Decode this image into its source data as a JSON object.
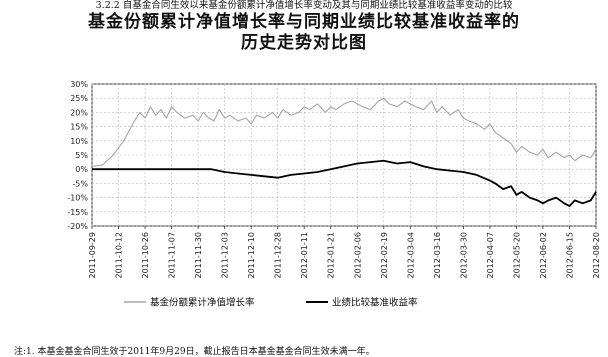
{
  "section_title": "3.2.2 自基金合同生效以来基金份额累计净值增长率变动及其与同期业绩比较基准收益率变动的比较",
  "chart_title_line1": "基金份额累计净值增长率与同期业绩比较基准收益率的",
  "chart_title_line2": "历史走势对比图",
  "footnote": "注:1. 本基金基金合同生效于2011年9月29日，截止报告日本基金基金合同生效未满一年。",
  "colors": {
    "nav": "#a6a6a6",
    "benchmark": "#000000",
    "grid": "#b8b8b8",
    "axis": "#333333"
  },
  "chart_data": {
    "type": "line",
    "ylim": [
      -20,
      30
    ],
    "yticks": [
      30,
      25,
      20,
      15,
      10,
      5,
      0,
      -5,
      -10,
      -15,
      -20
    ],
    "ytick_labels": [
      "30%",
      "25%",
      "20%",
      "15%",
      "10%",
      "5%",
      "0%",
      "-5%",
      "-10%",
      "-15%",
      "-20%"
    ],
    "xticks": [
      {
        "pos": 0,
        "label": "2011-09-29"
      },
      {
        "pos": 10,
        "label": "2011-10-12"
      },
      {
        "pos": 20,
        "label": "2011-10-26"
      },
      {
        "pos": 30,
        "label": "2011-11-07"
      },
      {
        "pos": 40,
        "label": "2011-11-30"
      },
      {
        "pos": 50,
        "label": "2011-12-03"
      },
      {
        "pos": 60,
        "label": "2011-12-10"
      },
      {
        "pos": 70,
        "label": "2011-12-28"
      },
      {
        "pos": 80,
        "label": "2012-01-11"
      },
      {
        "pos": 90,
        "label": "2012-01-21"
      },
      {
        "pos": 100,
        "label": "2012-02-06"
      },
      {
        "pos": 110,
        "label": "2012-02-19"
      },
      {
        "pos": 120,
        "label": "2012-03-04"
      },
      {
        "pos": 130,
        "label": "2012-03-16"
      },
      {
        "pos": 140,
        "label": "2012-03-30"
      },
      {
        "pos": 150,
        "label": "2012-04-07"
      },
      {
        "pos": 160,
        "label": "2012-05-20"
      },
      {
        "pos": 170,
        "label": "2012-06-02"
      },
      {
        "pos": 180,
        "label": "2012-06-15"
      },
      {
        "pos": 190,
        "label": "2012-08-20"
      }
    ],
    "xlim": [
      0,
      190
    ],
    "series": [
      {
        "name": "基金份额累计净值增长率",
        "color": "#a6a6a6",
        "x": [
          0,
          4,
          8,
          12,
          16,
          18,
          20,
          22,
          24,
          26,
          28,
          30,
          32,
          35,
          38,
          40,
          42,
          44,
          46,
          48,
          50,
          52,
          55,
          58,
          60,
          62,
          65,
          68,
          70,
          72,
          75,
          78,
          80,
          82,
          85,
          88,
          90,
          92,
          95,
          98,
          100,
          102,
          105,
          108,
          110,
          112,
          115,
          118,
          120,
          122,
          125,
          128,
          130,
          132,
          135,
          138,
          140,
          142,
          145,
          148,
          150,
          152,
          155,
          158,
          160,
          162,
          165,
          168,
          170,
          172,
          175,
          178,
          180,
          182,
          185,
          188,
          190
        ],
        "y": [
          1,
          1.5,
          5,
          10,
          17,
          20,
          18,
          22,
          19,
          21,
          18,
          22,
          20,
          18,
          19,
          17,
          20,
          18,
          17,
          21,
          18,
          19,
          17,
          18,
          16,
          19,
          18,
          20,
          18,
          21,
          19,
          20,
          22,
          21,
          23,
          20,
          22,
          21,
          23,
          24,
          23,
          22,
          21,
          24,
          25,
          23,
          22,
          24,
          23,
          22,
          21,
          24,
          20,
          22,
          19,
          21,
          18,
          17,
          16,
          14,
          16,
          13,
          11,
          9,
          6,
          8,
          6,
          5,
          7,
          4,
          6,
          4,
          5,
          3,
          5,
          4,
          7
        ]
      },
      {
        "name": "业绩比较基准收益率",
        "color": "#000000",
        "x": [
          0,
          5,
          10,
          15,
          20,
          25,
          30,
          35,
          40,
          45,
          50,
          55,
          60,
          65,
          70,
          75,
          80,
          85,
          90,
          95,
          100,
          105,
          110,
          115,
          120,
          125,
          130,
          135,
          140,
          145,
          150,
          152,
          155,
          158,
          160,
          162,
          165,
          168,
          170,
          172,
          175,
          178,
          180,
          182,
          185,
          188,
          190
        ],
        "y": [
          0,
          0,
          0,
          0,
          0,
          0,
          0,
          0,
          0,
          0,
          -1,
          -1.5,
          -2,
          -2.5,
          -3,
          -2,
          -1.5,
          -1,
          0,
          1,
          2,
          2.5,
          3,
          2,
          2.5,
          1,
          0,
          -0.5,
          -1,
          -2,
          -4,
          -5,
          -7,
          -6,
          -9,
          -8,
          -10,
          -11,
          -12,
          -11,
          -10,
          -12,
          -13,
          -11,
          -12,
          -11,
          -8
        ]
      }
    ]
  }
}
